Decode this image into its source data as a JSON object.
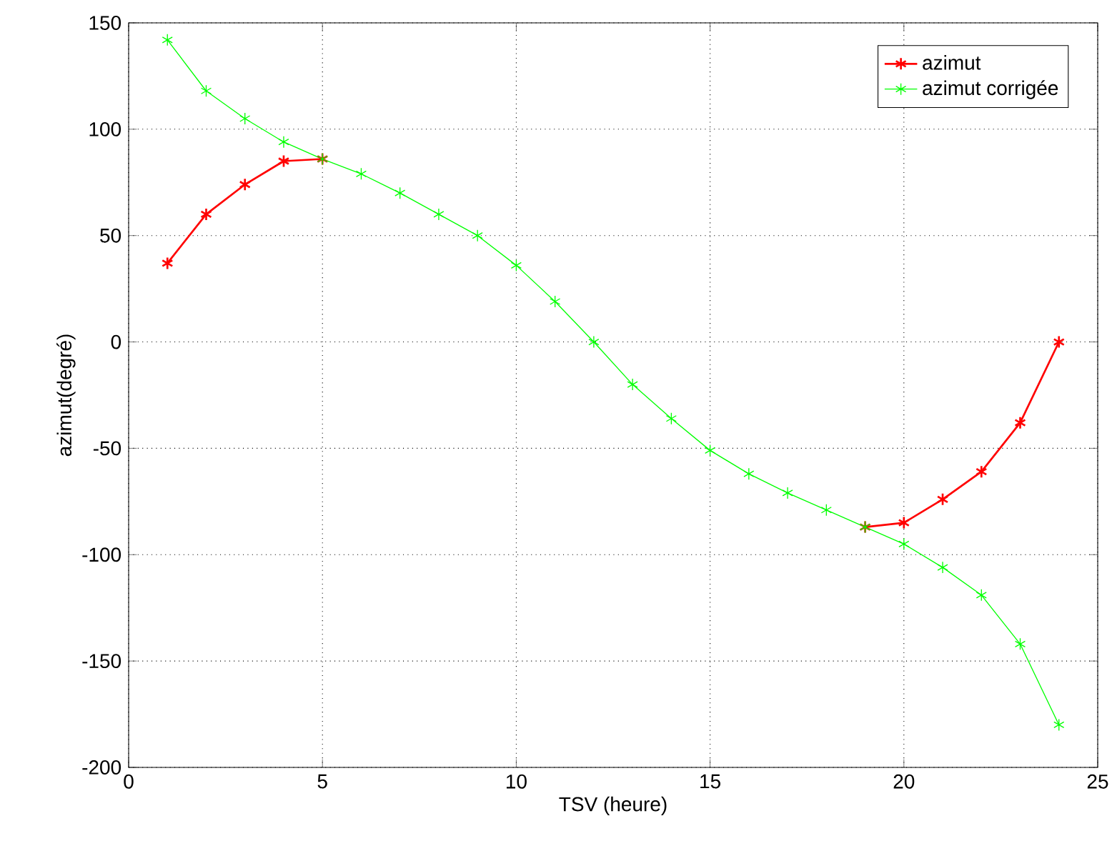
{
  "chart_data": {
    "type": "line",
    "xlabel": "TSV (heure)",
    "ylabel": "azimut(degré)",
    "x": [
      1,
      2,
      3,
      4,
      5,
      6,
      7,
      8,
      9,
      10,
      11,
      12,
      13,
      14,
      15,
      16,
      17,
      18,
      19,
      20,
      21,
      22,
      23,
      24
    ],
    "series": [
      {
        "name": "azimut",
        "color": "#ff0000",
        "values": [
          37,
          60,
          74,
          85,
          86,
          null,
          null,
          null,
          null,
          null,
          null,
          null,
          null,
          null,
          null,
          null,
          null,
          null,
          -87,
          -85,
          -74,
          -61,
          -38,
          0
        ]
      },
      {
        "name": "azimut corrigée",
        "color": "#00ff00",
        "values": [
          142,
          118,
          105,
          94,
          86,
          79,
          70,
          60,
          50,
          36,
          19,
          0,
          -20,
          -36,
          -51,
          -62,
          -71,
          -79,
          -87,
          -95,
          -106,
          -119,
          -142,
          -180
        ]
      }
    ],
    "xlim": [
      0,
      25
    ],
    "xticks": [
      0,
      5,
      10,
      15,
      20,
      25
    ],
    "ylim": [
      -200,
      150
    ],
    "yticks": [
      -200,
      -150,
      -100,
      -50,
      0,
      50,
      100,
      150
    ],
    "grid": true,
    "legend": "top right",
    "marker": "cross",
    "line_style": "solid"
  }
}
